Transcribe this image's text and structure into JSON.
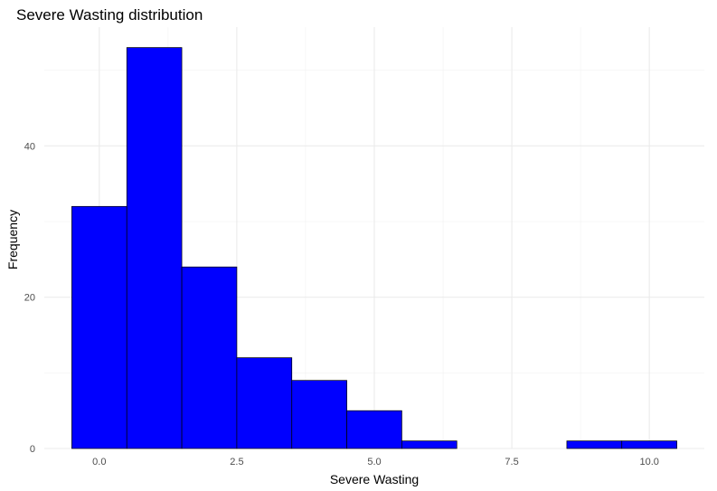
{
  "chart_data": {
    "type": "bar",
    "title": "Severe Wasting distribution",
    "xlabel": "Severe Wasting",
    "ylabel": "Frequency",
    "bins": [
      {
        "x0": -0.5,
        "x1": 0.5,
        "count": 32
      },
      {
        "x0": 0.5,
        "x1": 1.5,
        "count": 53
      },
      {
        "x0": 1.5,
        "x1": 2.5,
        "count": 24
      },
      {
        "x0": 2.5,
        "x1": 3.5,
        "count": 12
      },
      {
        "x0": 3.5,
        "x1": 4.5,
        "count": 9
      },
      {
        "x0": 4.5,
        "x1": 5.5,
        "count": 5
      },
      {
        "x0": 5.5,
        "x1": 6.5,
        "count": 1
      },
      {
        "x0": 6.5,
        "x1": 7.5,
        "count": 0
      },
      {
        "x0": 7.5,
        "x1": 8.5,
        "count": 0
      },
      {
        "x0": 8.5,
        "x1": 9.5,
        "count": 1
      },
      {
        "x0": 9.5,
        "x1": 10.5,
        "count": 1
      }
    ],
    "xlim": [
      -1.0,
      11.0
    ],
    "ylim": [
      0,
      55.7
    ],
    "xticks": [
      0,
      2.5,
      5,
      7.5,
      10
    ],
    "xtick_labels": [
      "0.0",
      "2.5",
      "5.0",
      "7.5",
      "10.0"
    ],
    "yticks": [
      0,
      20,
      40
    ],
    "ytick_labels": [
      "0",
      "20",
      "40"
    ],
    "bar_fill": "#0000ff",
    "bar_outline": "#000000",
    "grid": true,
    "legend": false
  }
}
